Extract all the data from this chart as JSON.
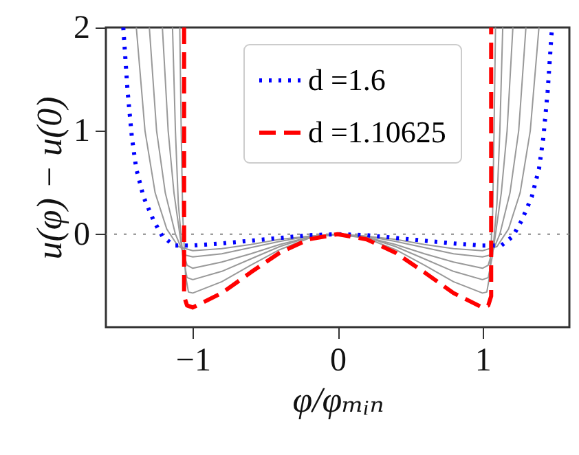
{
  "chart_data": {
    "type": "line",
    "xlabel": "φ/φₘᵢₙ",
    "ylabel": "u(φ) − u(0)",
    "xlim": [
      -1.6,
      1.6
    ],
    "ylim": [
      -0.9,
      2
    ],
    "xticks": [
      -1,
      0,
      1
    ],
    "yticks": [
      0,
      1,
      2
    ],
    "grid": false,
    "legend": "top",
    "ref_lines": [
      {
        "axis": "y",
        "value": 0,
        "color": "#888888",
        "line_style": "dotted"
      }
    ],
    "series": [
      {
        "color": "#999999",
        "line_style": "solid",
        "x": [
          -1.39,
          -1.33,
          -1.26,
          -1.18,
          -1.1,
          -1.0,
          -0.8,
          -0.6,
          -0.4,
          -0.2,
          0,
          0.2,
          0.4,
          0.6,
          0.8,
          1.0,
          1.1,
          1.18,
          1.26,
          1.33,
          1.39
        ],
        "values": [
          2,
          1,
          0.4,
          0.05,
          -0.12,
          -0.16,
          -0.14,
          -0.1,
          -0.05,
          -0.02,
          0,
          -0.02,
          -0.05,
          -0.1,
          -0.14,
          -0.16,
          -0.12,
          0.05,
          0.4,
          1,
          2
        ]
      },
      {
        "color": "#999999",
        "line_style": "solid",
        "x": [
          -1.3,
          -1.25,
          -1.19,
          -1.12,
          -1.06,
          -1.0,
          -0.8,
          -0.6,
          -0.4,
          -0.2,
          0,
          0.2,
          0.4,
          0.6,
          0.8,
          1.0,
          1.06,
          1.12,
          1.19,
          1.25,
          1.3
        ],
        "values": [
          2,
          1,
          0.4,
          0,
          -0.2,
          -0.22,
          -0.19,
          -0.13,
          -0.07,
          -0.02,
          0,
          -0.02,
          -0.07,
          -0.13,
          -0.19,
          -0.22,
          -0.2,
          0,
          0.4,
          1,
          2
        ]
      },
      {
        "color": "#999999",
        "line_style": "solid",
        "x": [
          -1.21,
          -1.17,
          -1.13,
          -1.08,
          -1.04,
          -1.0,
          -0.8,
          -0.6,
          -0.4,
          -0.2,
          0,
          0.2,
          0.4,
          0.6,
          0.8,
          1.0,
          1.04,
          1.08,
          1.13,
          1.17,
          1.21
        ],
        "values": [
          2,
          1,
          0.4,
          -0.1,
          -0.3,
          -0.33,
          -0.27,
          -0.19,
          -0.1,
          -0.03,
          0,
          -0.03,
          -0.1,
          -0.19,
          -0.27,
          -0.33,
          -0.3,
          -0.1,
          0.4,
          1,
          2
        ]
      },
      {
        "color": "#999999",
        "line_style": "solid",
        "x": [
          -1.14,
          -1.12,
          -1.1,
          -1.07,
          -1.04,
          -1.0,
          -0.8,
          -0.6,
          -0.4,
          -0.2,
          0,
          0.2,
          0.4,
          0.6,
          0.8,
          1.0,
          1.04,
          1.07,
          1.1,
          1.12,
          1.14
        ],
        "values": [
          2,
          1,
          0.3,
          -0.2,
          -0.42,
          -0.44,
          -0.36,
          -0.24,
          -0.12,
          -0.03,
          0,
          -0.03,
          -0.12,
          -0.24,
          -0.36,
          -0.44,
          -0.42,
          -0.2,
          0.3,
          1,
          2
        ]
      },
      {
        "color": "#999999",
        "line_style": "solid",
        "x": [
          -1.09,
          -1.08,
          -1.07,
          -1.05,
          -1.03,
          -1.0,
          -0.8,
          -0.6,
          -0.4,
          -0.2,
          0,
          0.2,
          0.4,
          0.6,
          0.8,
          1.0,
          1.03,
          1.05,
          1.07,
          1.08,
          1.09
        ],
        "values": [
          2,
          1,
          0.2,
          -0.4,
          -0.56,
          -0.57,
          -0.46,
          -0.3,
          -0.15,
          -0.04,
          0,
          -0.04,
          -0.15,
          -0.3,
          -0.46,
          -0.57,
          -0.56,
          -0.4,
          0.2,
          1,
          2
        ]
      },
      {
        "name": "d =1.6",
        "color": "#0000ff",
        "line_style": "dotted",
        "x": [
          -1.48,
          -1.45,
          -1.42,
          -1.39,
          -1.34,
          -1.27,
          -1.21,
          -1.13,
          -1.0,
          -0.8,
          -0.5,
          -0.2,
          0,
          0.2,
          0.5,
          0.8,
          1.0,
          1.13,
          1.21,
          1.27,
          1.34,
          1.39,
          1.42,
          1.45,
          1.48
        ],
        "values": [
          2,
          1.38,
          0.93,
          0.63,
          0.36,
          0.13,
          -0.02,
          -0.11,
          -0.11,
          -0.09,
          -0.05,
          -0.01,
          0,
          -0.01,
          -0.05,
          -0.09,
          -0.11,
          -0.11,
          -0.02,
          0.13,
          0.36,
          0.63,
          0.93,
          1.38,
          2
        ]
      },
      {
        "name": "d =1.10625",
        "color": "#ff0000",
        "line_style": "dashed",
        "x": [
          -1.06,
          -1.06,
          -1.04,
          -1.0,
          -0.8,
          -0.6,
          -0.4,
          -0.2,
          0,
          0.2,
          0.4,
          0.6,
          0.8,
          1.0,
          1.04,
          1.06,
          1.06
        ],
        "values": [
          2,
          -0.6,
          -0.69,
          -0.71,
          -0.57,
          -0.37,
          -0.18,
          -0.05,
          0,
          -0.05,
          -0.18,
          -0.37,
          -0.57,
          -0.71,
          -0.69,
          -0.6,
          2
        ]
      }
    ]
  }
}
